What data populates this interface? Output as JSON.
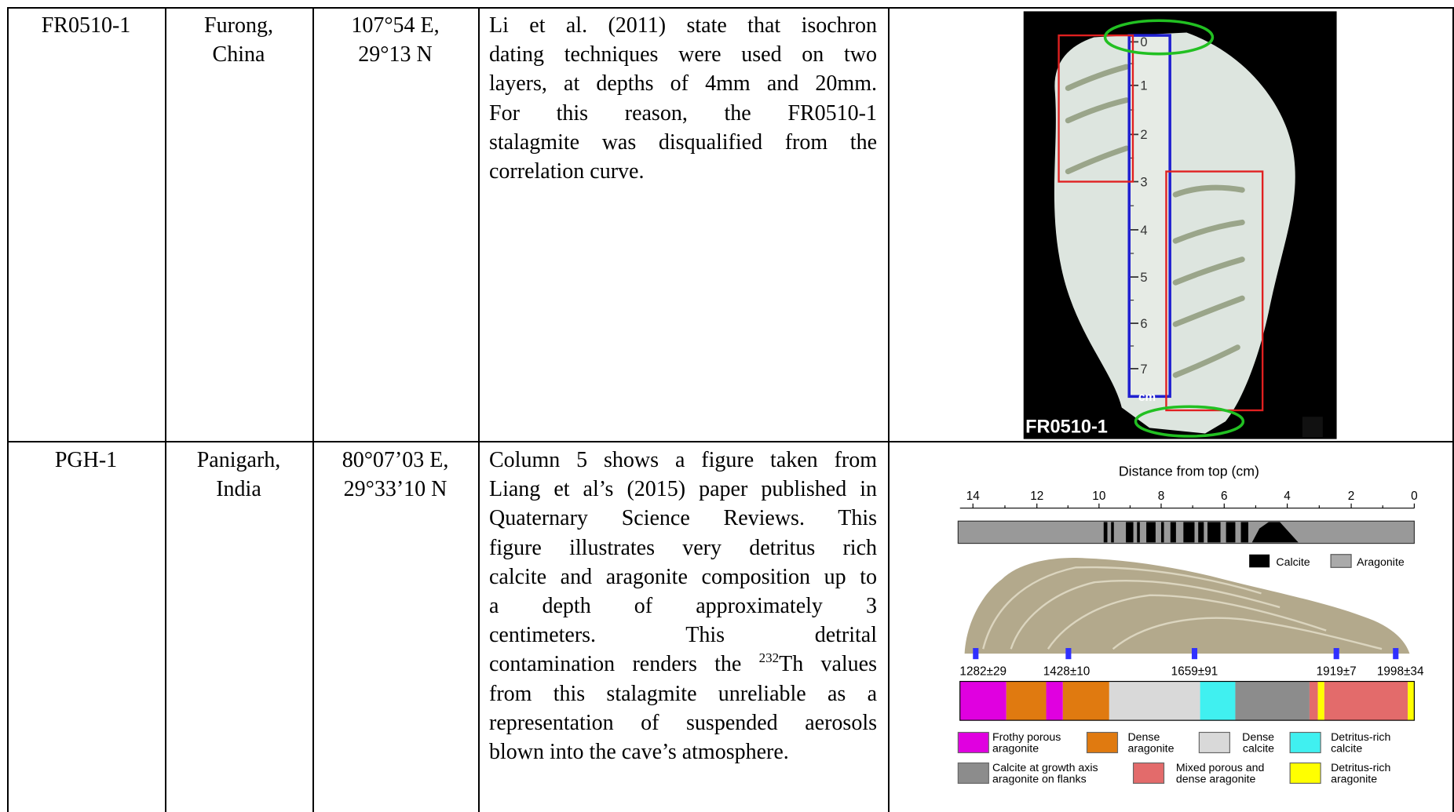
{
  "table": {
    "rows": [
      {
        "id": "FR0510-1",
        "location": [
          "Furong,",
          "China"
        ],
        "coordinates": [
          "107°54 E,",
          "29°13 N"
        ],
        "notes": [
          "Li et al. (2011) state that isochron",
          "dating techniques were used on two",
          "layers, at depths of 4mm and 20mm.",
          "For this reason, the FR0510-1",
          "stalagmite was disqualified from the",
          "correlation curve."
        ],
        "figure": {
          "label": "FR0510-1",
          "unit": "cm",
          "ruler": [
            "0",
            "1",
            "2",
            "3",
            "4",
            "5",
            "6",
            "7"
          ]
        }
      },
      {
        "id": "PGH-1",
        "location": [
          "Panigarh,",
          "India"
        ],
        "coordinates": [
          "80°07’03 E,",
          "29°33’10 N"
        ],
        "notes": [
          "Column 5 shows a figure taken from",
          "Liang et al’s (2015) paper published in",
          "Quaternary Science Reviews. This",
          "figure illustrates very detritus rich",
          "calcite and aragonite composition up to",
          "a depth of approximately 3",
          "centimeters. This detrital",
          {
            "before": "contamination renders the ",
            "superscript": "232",
            "after": "Th values"
          },
          "from this stalagmite unreliable as a",
          "representation of suspended aerosols",
          "blown into the cave’s atmosphere."
        ],
        "figure": {
          "axis_title": "Distance from top (cm)",
          "ticks": [
            "14",
            "12",
            "10",
            "8",
            "6",
            "4",
            "2",
            "0"
          ],
          "mineral_legend": [
            "Calcite",
            "Aragonite"
          ],
          "ages": [
            "1282±29",
            "1428±10",
            "1659±91",
            "1919±7",
            "1998±34"
          ],
          "legend": [
            {
              "lines": [
                "Frothy porous",
                "aragonite"
              ],
              "color": "#e000e0"
            },
            {
              "lines": [
                "Dense",
                "aragonite"
              ],
              "color": "#e07a10"
            },
            {
              "lines": [
                "Dense",
                "calcite"
              ],
              "color": "#d9d9d9"
            },
            {
              "lines": [
                "Detritus-rich",
                "calcite"
              ],
              "color": "#40f0f0"
            },
            {
              "lines": [
                "Calcite at growth axis",
                "aragonite on flanks"
              ],
              "color": "#8c8c8c"
            },
            {
              "lines": [
                "Mixed porous and",
                "dense aragonite"
              ],
              "color": "#e36b6b"
            },
            {
              "lines": [
                "Detritus-rich",
                "aragonite"
              ],
              "color": "#ffff00"
            }
          ]
        }
      }
    ]
  }
}
